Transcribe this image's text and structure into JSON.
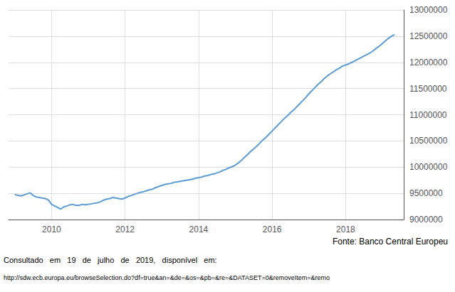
{
  "chart_data": {
    "type": "line",
    "annotations": [
      "Fonte: Banco Central Europeu",
      "Consultado   em   19   de   julho   de   2019,   disponível   em:",
      "http://sdw.ecb.europa.eu/browseSelection.do?df=true&an=&de=&os=&pb=&re=&DATASET=0&removeItem=&remo"
    ],
    "color": "#5b9bd5",
    "grid": true,
    "xlim": [
      2008.83,
      2019.58
    ],
    "xticks": [
      2010,
      2012,
      2014,
      2016,
      2018
    ],
    "ylim": [
      9000000,
      13000000
    ],
    "yticks": [
      9000000,
      9500000,
      10000000,
      10500000,
      11000000,
      11500000,
      12000000,
      12500000,
      13000000
    ],
    "x": [
      2009.0,
      2009.083,
      2009.167,
      2009.25,
      2009.333,
      2009.417,
      2009.5,
      2009.583,
      2009.667,
      2009.75,
      2009.833,
      2009.917,
      2010.0,
      2010.083,
      2010.167,
      2010.25,
      2010.333,
      2010.417,
      2010.5,
      2010.583,
      2010.667,
      2010.75,
      2010.833,
      2010.917,
      2011.0,
      2011.083,
      2011.167,
      2011.25,
      2011.333,
      2011.417,
      2011.5,
      2011.583,
      2011.667,
      2011.75,
      2011.833,
      2011.917,
      2012.0,
      2012.083,
      2012.167,
      2012.25,
      2012.333,
      2012.417,
      2012.5,
      2012.583,
      2012.667,
      2012.75,
      2012.833,
      2012.917,
      2013.0,
      2013.083,
      2013.167,
      2013.25,
      2013.333,
      2013.417,
      2013.5,
      2013.583,
      2013.667,
      2013.75,
      2013.833,
      2013.917,
      2014.0,
      2014.083,
      2014.167,
      2014.25,
      2014.333,
      2014.417,
      2014.5,
      2014.583,
      2014.667,
      2014.75,
      2014.833,
      2014.917,
      2015.0,
      2015.083,
      2015.167,
      2015.25,
      2015.333,
      2015.417,
      2015.5,
      2015.583,
      2015.667,
      2015.75,
      2015.833,
      2015.917,
      2016.0,
      2016.083,
      2016.167,
      2016.25,
      2016.333,
      2016.417,
      2016.5,
      2016.583,
      2016.667,
      2016.75,
      2016.833,
      2016.917,
      2017.0,
      2017.083,
      2017.167,
      2017.25,
      2017.333,
      2017.417,
      2017.5,
      2017.583,
      2017.667,
      2017.75,
      2017.833,
      2017.917,
      2018.0,
      2018.083,
      2018.167,
      2018.25,
      2018.333,
      2018.417,
      2018.5,
      2018.583,
      2018.667,
      2018.75,
      2018.833,
      2018.917,
      2019.0,
      2019.083,
      2019.167,
      2019.25,
      2019.333
    ],
    "values": [
      9480000,
      9460000,
      9450000,
      9470000,
      9490000,
      9510000,
      9460000,
      9430000,
      9420000,
      9410000,
      9400000,
      9370000,
      9290000,
      9260000,
      9230000,
      9200000,
      9240000,
      9260000,
      9280000,
      9290000,
      9270000,
      9270000,
      9290000,
      9280000,
      9290000,
      9300000,
      9310000,
      9320000,
      9340000,
      9370000,
      9390000,
      9400000,
      9420000,
      9410000,
      9400000,
      9390000,
      9410000,
      9440000,
      9460000,
      9480000,
      9500000,
      9520000,
      9530000,
      9550000,
      9570000,
      9580000,
      9610000,
      9630000,
      9650000,
      9670000,
      9680000,
      9690000,
      9710000,
      9720000,
      9730000,
      9740000,
      9750000,
      9760000,
      9770000,
      9790000,
      9800000,
      9810000,
      9830000,
      9840000,
      9860000,
      9870000,
      9890000,
      9910000,
      9940000,
      9960000,
      9990000,
      10010000,
      10040000,
      10080000,
      10130000,
      10190000,
      10240000,
      10300000,
      10350000,
      10400000,
      10460000,
      10520000,
      10570000,
      10630000,
      10690000,
      10750000,
      10810000,
      10870000,
      10930000,
      10980000,
      11040000,
      11090000,
      11150000,
      11210000,
      11270000,
      11330000,
      11400000,
      11460000,
      11520000,
      11580000,
      11630000,
      11690000,
      11740000,
      11780000,
      11820000,
      11860000,
      11890000,
      11930000,
      11950000,
      11970000,
      12000000,
      12030000,
      12060000,
      12090000,
      12120000,
      12150000,
      12180000,
      12220000,
      12270000,
      12310000,
      12360000,
      12410000,
      12460000,
      12500000,
      12530000
    ]
  }
}
